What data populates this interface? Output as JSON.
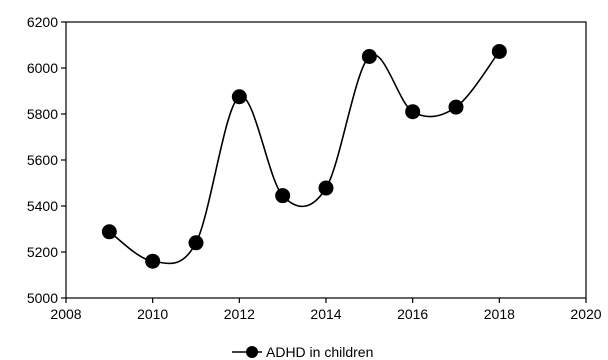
{
  "chart_data": {
    "type": "line",
    "smooth": true,
    "x": [
      2009,
      2010,
      2011,
      2012,
      2013,
      2014,
      2015,
      2016,
      2017,
      2018
    ],
    "series": [
      {
        "name": "ADHD in children",
        "values": [
          5288,
          5160,
          5240,
          5875,
          5445,
          5478,
          6050,
          5810,
          5830,
          6072
        ],
        "color": "#000000",
        "marker": "circle"
      }
    ],
    "title": "",
    "xlabel": "",
    "ylabel": "",
    "xlim": [
      2008,
      2020
    ],
    "ylim": [
      5000,
      6200
    ],
    "x_ticks": [
      2008,
      2010,
      2012,
      2014,
      2016,
      2018,
      2020
    ],
    "y_ticks": [
      5000,
      5200,
      5400,
      5600,
      5800,
      6000,
      6200
    ],
    "grid": false,
    "legend_position": "bottom-center"
  }
}
